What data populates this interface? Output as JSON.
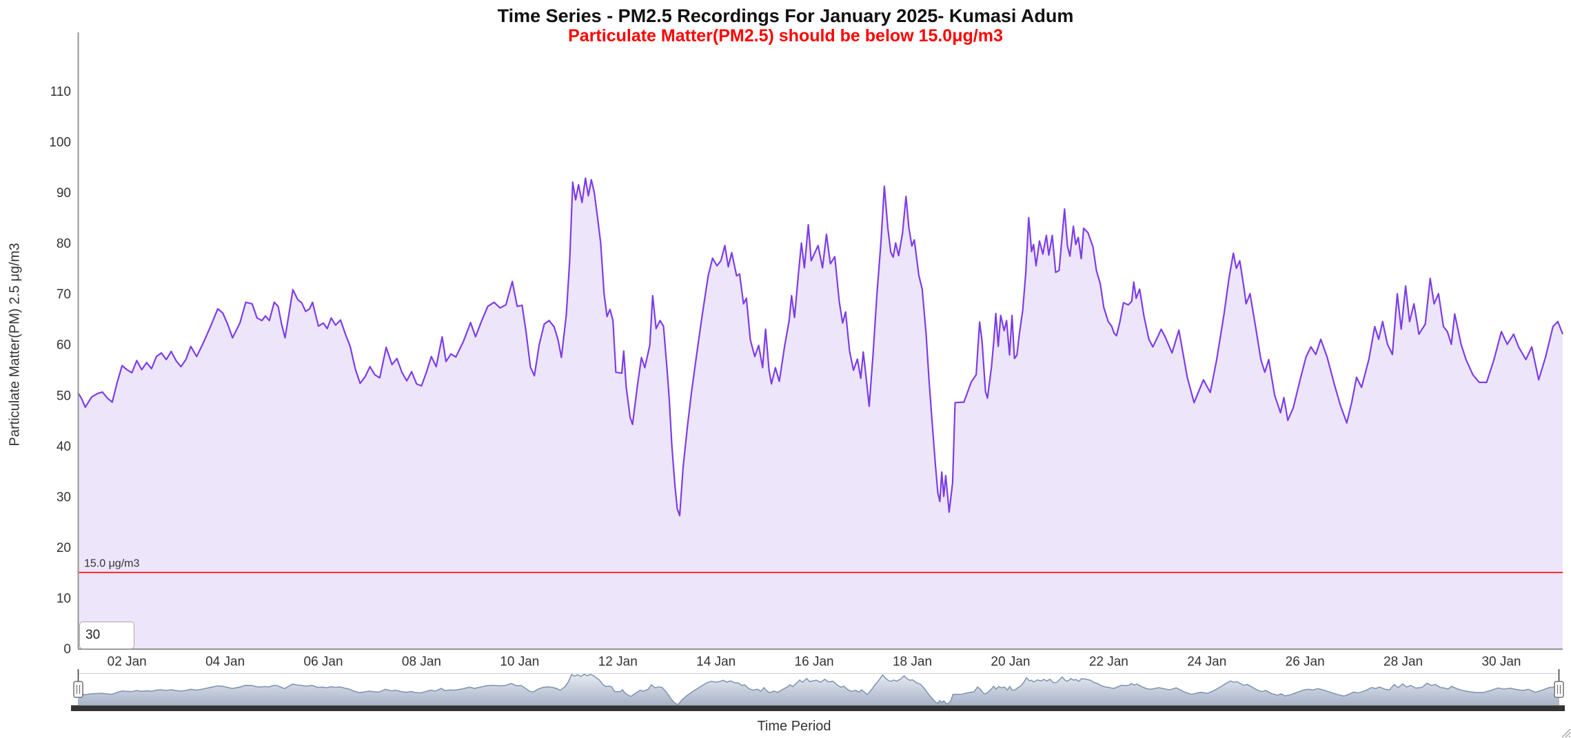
{
  "header": {
    "title": "Time Series - PM2.5 Recordings For January 2025- Kumasi Adum",
    "subtitle": "Particulate Matter(PM2.5) should be below 15.0μg/m3"
  },
  "y_axis": {
    "title": "Particulate Matter(PM) 2.5 μg/m3",
    "ticks": [
      0,
      10,
      20,
      30,
      40,
      50,
      60,
      70,
      80,
      90,
      100,
      110
    ]
  },
  "x_axis": {
    "title": "Time Period",
    "ticks": [
      {
        "day": 2,
        "label": "02 Jan"
      },
      {
        "day": 4,
        "label": "04 Jan"
      },
      {
        "day": 6,
        "label": "06 Jan"
      },
      {
        "day": 8,
        "label": "08 Jan"
      },
      {
        "day": 10,
        "label": "10 Jan"
      },
      {
        "day": 12,
        "label": "12 Jan"
      },
      {
        "day": 14,
        "label": "14 Jan"
      },
      {
        "day": 16,
        "label": "16 Jan"
      },
      {
        "day": 18,
        "label": "18 Jan"
      },
      {
        "day": 20,
        "label": "20 Jan"
      },
      {
        "day": 22,
        "label": "22 Jan"
      },
      {
        "day": 24,
        "label": "24 Jan"
      },
      {
        "day": 26,
        "label": "26 Jan"
      },
      {
        "day": 28,
        "label": "28 Jan"
      },
      {
        "day": 30,
        "label": "30 Jan"
      }
    ]
  },
  "threshold": {
    "value": 15.0,
    "label": "15.0 μg/m3"
  },
  "range_input": {
    "value": "30"
  },
  "colors": {
    "series_line": "#7d3ce8",
    "series_fill": "#ede5fa",
    "threshold": "#ff0000",
    "subtitle": "#ff0000",
    "axis_line": "#949494",
    "navigator_line": "#8296b4",
    "navigator_fill_top": "#e7ebf2",
    "navigator_fill_bottom": "#a9b4c8",
    "scrollbar": "#333333"
  },
  "chart_data": {
    "type": "area",
    "title": "Time Series - PM2.5 Recordings For January 2025- Kumasi Adum",
    "subtitle": "Particulate Matter(PM2.5) should be below 15.0μg/m3",
    "xlabel": "Time Period",
    "ylabel": "Particulate Matter(PM) 2.5 μg/m3",
    "units": "μg/m3",
    "x_domain_days_of_january_2025": [
      1,
      31.25
    ],
    "ylim": [
      0,
      119
    ],
    "threshold_line": 15.0,
    "x_tick_labels": [
      "02 Jan",
      "04 Jan",
      "06 Jan",
      "08 Jan",
      "10 Jan",
      "12 Jan",
      "14 Jan",
      "16 Jan",
      "18 Jan",
      "20 Jan",
      "22 Jan",
      "24 Jan",
      "26 Jan",
      "28 Jan",
      "30 Jan"
    ],
    "points_day_value": [
      [
        1,
        50.5
      ],
      [
        1.08,
        49.2
      ],
      [
        1.15,
        47.6
      ],
      [
        1.28,
        49.6
      ],
      [
        1.4,
        50.3
      ],
      [
        1.5,
        50.6
      ],
      [
        1.6,
        49.4
      ],
      [
        1.7,
        48.6
      ],
      [
        1.8,
        52.5
      ],
      [
        1.9,
        55.8
      ],
      [
        2,
        55
      ],
      [
        2.1,
        54.4
      ],
      [
        2.2,
        56.8
      ],
      [
        2.3,
        55
      ],
      [
        2.4,
        56.4
      ],
      [
        2.5,
        55.2
      ],
      [
        2.6,
        57.6
      ],
      [
        2.7,
        58.3
      ],
      [
        2.8,
        57
      ],
      [
        2.9,
        58.6
      ],
      [
        3,
        56.8
      ],
      [
        3.1,
        55.6
      ],
      [
        3.2,
        57
      ],
      [
        3.3,
        59.6
      ],
      [
        3.42,
        57.6
      ],
      [
        3.55,
        60.2
      ],
      [
        3.7,
        63.5
      ],
      [
        3.85,
        67
      ],
      [
        3.95,
        66.2
      ],
      [
        4.05,
        64
      ],
      [
        4.15,
        61.3
      ],
      [
        4.3,
        64.2
      ],
      [
        4.42,
        68.3
      ],
      [
        4.55,
        68
      ],
      [
        4.65,
        65.2
      ],
      [
        4.75,
        64.7
      ],
      [
        4.82,
        65.6
      ],
      [
        4.9,
        64.7
      ],
      [
        5,
        68.3
      ],
      [
        5.08,
        67.5
      ],
      [
        5.15,
        64
      ],
      [
        5.22,
        61.3
      ],
      [
        5.3,
        66
      ],
      [
        5.38,
        70.8
      ],
      [
        5.48,
        68.8
      ],
      [
        5.56,
        68.2
      ],
      [
        5.64,
        66.5
      ],
      [
        5.72,
        67
      ],
      [
        5.78,
        68.3
      ],
      [
        5.9,
        63.6
      ],
      [
        6,
        64.2
      ],
      [
        6.08,
        63.1
      ],
      [
        6.16,
        65.2
      ],
      [
        6.25,
        63.8
      ],
      [
        6.35,
        64.8
      ],
      [
        6.45,
        62
      ],
      [
        6.55,
        59.5
      ],
      [
        6.65,
        55.2
      ],
      [
        6.75,
        52.3
      ],
      [
        6.85,
        53.6
      ],
      [
        6.95,
        55.6
      ],
      [
        7.05,
        54
      ],
      [
        7.15,
        53.4
      ],
      [
        7.28,
        59.4
      ],
      [
        7.4,
        56
      ],
      [
        7.5,
        57.2
      ],
      [
        7.6,
        54.5
      ],
      [
        7.7,
        52.8
      ],
      [
        7.8,
        54.6
      ],
      [
        7.9,
        52.2
      ],
      [
        8,
        51.8
      ],
      [
        8.1,
        54.5
      ],
      [
        8.2,
        57.6
      ],
      [
        8.3,
        55.6
      ],
      [
        8.42,
        61.5
      ],
      [
        8.5,
        56.6
      ],
      [
        8.6,
        58.1
      ],
      [
        8.7,
        57.5
      ],
      [
        8.85,
        60.5
      ],
      [
        9,
        64.3
      ],
      [
        9.1,
        61.5
      ],
      [
        9.22,
        64.5
      ],
      [
        9.35,
        67.5
      ],
      [
        9.48,
        68.3
      ],
      [
        9.6,
        67.2
      ],
      [
        9.72,
        67.8
      ],
      [
        9.85,
        72.4
      ],
      [
        9.95,
        67.5
      ],
      [
        10.05,
        67.7
      ],
      [
        10.13,
        62.5
      ],
      [
        10.22,
        55.5
      ],
      [
        10.3,
        53.8
      ],
      [
        10.4,
        60
      ],
      [
        10.5,
        64
      ],
      [
        10.6,
        64.7
      ],
      [
        10.7,
        63.5
      ],
      [
        10.78,
        61
      ],
      [
        10.85,
        57.4
      ],
      [
        10.95,
        65.8
      ],
      [
        11.02,
        76.7
      ],
      [
        11.08,
        92
      ],
      [
        11.14,
        88.5
      ],
      [
        11.2,
        91.5
      ],
      [
        11.27,
        88
      ],
      [
        11.34,
        92.8
      ],
      [
        11.4,
        89.3
      ],
      [
        11.46,
        92.5
      ],
      [
        11.52,
        90
      ],
      [
        11.58,
        85.5
      ],
      [
        11.65,
        80
      ],
      [
        11.72,
        70
      ],
      [
        11.78,
        65.5
      ],
      [
        11.84,
        66.9
      ],
      [
        11.9,
        64.7
      ],
      [
        11.96,
        54.5
      ],
      [
        12.08,
        54.3
      ],
      [
        12.12,
        58.7
      ],
      [
        12.17,
        51.6
      ],
      [
        12.25,
        45.6
      ],
      [
        12.3,
        44.2
      ],
      [
        12.4,
        52
      ],
      [
        12.48,
        57.4
      ],
      [
        12.55,
        55.4
      ],
      [
        12.65,
        59.8
      ],
      [
        12.71,
        69.6
      ],
      [
        12.78,
        63.1
      ],
      [
        12.86,
        64.7
      ],
      [
        12.93,
        63.6
      ],
      [
        13,
        55.4
      ],
      [
        13.05,
        48.9
      ],
      [
        13.1,
        40.1
      ],
      [
        13.16,
        32.5
      ],
      [
        13.21,
        27.6
      ],
      [
        13.26,
        26.2
      ],
      [
        13.33,
        35.8
      ],
      [
        13.42,
        44
      ],
      [
        13.5,
        50.5
      ],
      [
        13.6,
        57.6
      ],
      [
        13.72,
        65.8
      ],
      [
        13.84,
        73.5
      ],
      [
        13.93,
        77
      ],
      [
        14.02,
        75.5
      ],
      [
        14.1,
        76.5
      ],
      [
        14.18,
        79.5
      ],
      [
        14.25,
        75.3
      ],
      [
        14.32,
        78.1
      ],
      [
        14.42,
        73.5
      ],
      [
        14.48,
        73.9
      ],
      [
        14.56,
        68
      ],
      [
        14.62,
        69.1
      ],
      [
        14.7,
        60.9
      ],
      [
        14.79,
        57.6
      ],
      [
        14.87,
        59.8
      ],
      [
        14.95,
        55.4
      ],
      [
        15.01,
        63
      ],
      [
        15.08,
        54.9
      ],
      [
        15.13,
        52.2
      ],
      [
        15.21,
        55.4
      ],
      [
        15.29,
        52.7
      ],
      [
        15.4,
        59.8
      ],
      [
        15.49,
        64.7
      ],
      [
        15.54,
        69.6
      ],
      [
        15.6,
        65.3
      ],
      [
        15.68,
        74
      ],
      [
        15.74,
        80
      ],
      [
        15.8,
        75.1
      ],
      [
        15.88,
        83.6
      ],
      [
        15.94,
        76.5
      ],
      [
        16,
        77.8
      ],
      [
        16.08,
        79.5
      ],
      [
        16.17,
        75.1
      ],
      [
        16.25,
        81.7
      ],
      [
        16.33,
        75.9
      ],
      [
        16.42,
        77.3
      ],
      [
        16.51,
        68.5
      ],
      [
        16.58,
        64.2
      ],
      [
        16.64,
        66.4
      ],
      [
        16.72,
        58.7
      ],
      [
        16.8,
        54.9
      ],
      [
        16.88,
        57.1
      ],
      [
        16.95,
        53.3
      ],
      [
        17,
        58.5
      ],
      [
        17.06,
        53.3
      ],
      [
        17.12,
        47.8
      ],
      [
        17.2,
        58
      ],
      [
        17.28,
        70
      ],
      [
        17.36,
        80
      ],
      [
        17.43,
        91.2
      ],
      [
        17.5,
        83
      ],
      [
        17.56,
        78.2
      ],
      [
        17.61,
        77.2
      ],
      [
        17.66,
        80
      ],
      [
        17.72,
        77.5
      ],
      [
        17.8,
        82
      ],
      [
        17.87,
        89.2
      ],
      [
        17.93,
        83
      ],
      [
        17.99,
        79.4
      ],
      [
        18.04,
        80.6
      ],
      [
        18.13,
        73.7
      ],
      [
        18.2,
        70.9
      ],
      [
        18.28,
        62
      ],
      [
        18.34,
        53
      ],
      [
        18.4,
        45
      ],
      [
        18.47,
        36.2
      ],
      [
        18.52,
        30.7
      ],
      [
        18.56,
        29
      ],
      [
        18.6,
        34.8
      ],
      [
        18.64,
        30
      ],
      [
        18.68,
        34.1
      ],
      [
        18.75,
        26.9
      ],
      [
        18.82,
        32.7
      ],
      [
        18.87,
        48.5
      ],
      [
        19.05,
        48.6
      ],
      [
        19.2,
        52.6
      ],
      [
        19.3,
        54
      ],
      [
        19.37,
        64.4
      ],
      [
        19.42,
        60.7
      ],
      [
        19.49,
        50.7
      ],
      [
        19.53,
        49.4
      ],
      [
        19.61,
        55.4
      ],
      [
        19.66,
        60.7
      ],
      [
        19.7,
        66.1
      ],
      [
        19.75,
        59.6
      ],
      [
        19.8,
        65.7
      ],
      [
        19.87,
        62.7
      ],
      [
        19.92,
        64.7
      ],
      [
        19.98,
        57.9
      ],
      [
        20.03,
        65.7
      ],
      [
        20.08,
        57.2
      ],
      [
        20.13,
        57.9
      ],
      [
        20.18,
        62
      ],
      [
        20.25,
        66.8
      ],
      [
        20.31,
        74
      ],
      [
        20.37,
        85
      ],
      [
        20.43,
        78.3
      ],
      [
        20.47,
        79.7
      ],
      [
        20.52,
        75.5
      ],
      [
        20.59,
        80.4
      ],
      [
        20.66,
        77.8
      ],
      [
        20.73,
        81.5
      ],
      [
        20.78,
        77.6
      ],
      [
        20.85,
        81.5
      ],
      [
        20.92,
        74.2
      ],
      [
        20.99,
        74.6
      ],
      [
        21.1,
        86.7
      ],
      [
        21.16,
        79.4
      ],
      [
        21.21,
        77.4
      ],
      [
        21.28,
        83.3
      ],
      [
        21.33,
        79.7
      ],
      [
        21.38,
        81.1
      ],
      [
        21.44,
        76.9
      ],
      [
        21.49,
        82.9
      ],
      [
        21.58,
        82
      ],
      [
        21.68,
        79.2
      ],
      [
        21.75,
        74.6
      ],
      [
        21.83,
        71.9
      ],
      [
        21.9,
        67.3
      ],
      [
        21.99,
        64.5
      ],
      [
        22.06,
        63.6
      ],
      [
        22.11,
        62.2
      ],
      [
        22.16,
        61.7
      ],
      [
        22.23,
        64.5
      ],
      [
        22.3,
        68.2
      ],
      [
        22.4,
        67.8
      ],
      [
        22.47,
        68.5
      ],
      [
        22.51,
        72.3
      ],
      [
        22.56,
        69.1
      ],
      [
        22.63,
        70.9
      ],
      [
        22.72,
        65.5
      ],
      [
        22.82,
        61
      ],
      [
        22.9,
        59.5
      ],
      [
        23,
        61.5
      ],
      [
        23.07,
        63
      ],
      [
        23.15,
        61.5
      ],
      [
        23.29,
        58.3
      ],
      [
        23.43,
        62.8
      ],
      [
        23.6,
        53.5
      ],
      [
        23.74,
        48.5
      ],
      [
        23.93,
        53
      ],
      [
        24.07,
        50.5
      ],
      [
        24.2,
        57
      ],
      [
        24.35,
        66
      ],
      [
        24.45,
        73
      ],
      [
        24.54,
        78
      ],
      [
        24.6,
        75
      ],
      [
        24.67,
        76.5
      ],
      [
        24.75,
        71.5
      ],
      [
        24.8,
        68
      ],
      [
        24.88,
        70
      ],
      [
        25,
        63
      ],
      [
        25.1,
        57
      ],
      [
        25.18,
        54.5
      ],
      [
        25.26,
        57
      ],
      [
        25.38,
        50
      ],
      [
        25.5,
        46.5
      ],
      [
        25.57,
        49.5
      ],
      [
        25.65,
        45
      ],
      [
        25.76,
        47.5
      ],
      [
        25.9,
        53
      ],
      [
        26.02,
        57.5
      ],
      [
        26.12,
        59.5
      ],
      [
        26.22,
        58
      ],
      [
        26.32,
        61
      ],
      [
        26.45,
        57.5
      ],
      [
        26.6,
        52
      ],
      [
        26.72,
        48
      ],
      [
        26.85,
        44.5
      ],
      [
        26.95,
        48.5
      ],
      [
        27.05,
        53.5
      ],
      [
        27.15,
        51.5
      ],
      [
        27.3,
        57
      ],
      [
        27.42,
        63.5
      ],
      [
        27.5,
        61
      ],
      [
        27.58,
        64.5
      ],
      [
        27.68,
        60
      ],
      [
        27.78,
        58
      ],
      [
        27.88,
        70
      ],
      [
        27.96,
        63
      ],
      [
        28.05,
        71.5
      ],
      [
        28.13,
        64.5
      ],
      [
        28.22,
        68
      ],
      [
        28.32,
        62
      ],
      [
        28.45,
        64
      ],
      [
        28.55,
        73
      ],
      [
        28.63,
        68
      ],
      [
        28.72,
        70
      ],
      [
        28.82,
        63.5
      ],
      [
        28.9,
        62.5
      ],
      [
        28.98,
        60
      ],
      [
        29.05,
        66
      ],
      [
        29.18,
        60
      ],
      [
        29.28,
        57
      ],
      [
        29.42,
        54
      ],
      [
        29.55,
        52.5
      ],
      [
        29.7,
        52.5
      ],
      [
        29.85,
        57
      ],
      [
        30,
        62.5
      ],
      [
        30.12,
        60
      ],
      [
        30.25,
        62
      ],
      [
        30.35,
        59.5
      ],
      [
        30.5,
        57
      ],
      [
        30.62,
        59.5
      ],
      [
        30.76,
        53
      ],
      [
        30.9,
        57.5
      ],
      [
        31.05,
        63.5
      ],
      [
        31.15,
        64.5
      ],
      [
        31.25,
        62
      ]
    ]
  }
}
